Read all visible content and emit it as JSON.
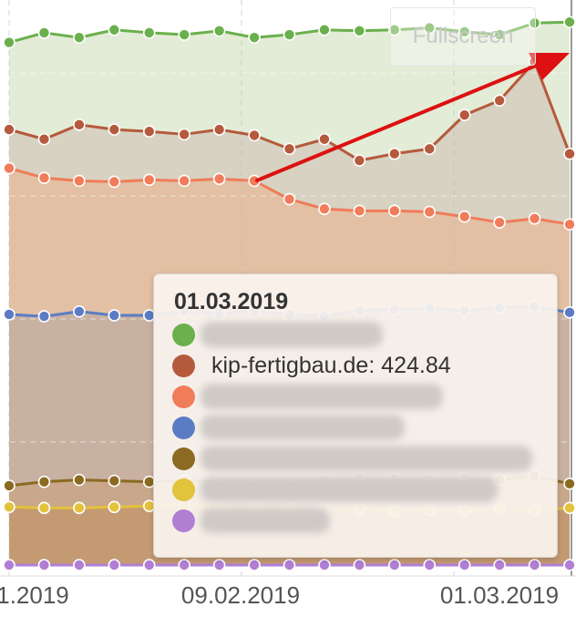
{
  "fullscreen_label": "Fullscreen",
  "chart_data": {
    "type": "area",
    "x": [
      "1.2019",
      "",
      "",
      "",
      "",
      "",
      "",
      "09.02.2019",
      "",
      "",
      "",
      "",
      "",
      "",
      "",
      "01.03.2019",
      ""
    ],
    "xtick_labels": [
      "1.2019",
      "09.02.2019",
      "01.03.2019"
    ],
    "series": [
      {
        "name": "",
        "color": "#6ab04c",
        "fill": "#e3ecd6",
        "values": [
          540,
          550,
          545,
          553,
          550,
          548,
          552,
          545,
          548,
          553,
          552,
          553,
          555,
          551,
          548,
          560,
          561
        ]
      },
      {
        "name": "kip-fertigbau.de",
        "color": "#b55a3c",
        "fill": "#d7d2c2",
        "values": [
          450,
          440,
          455,
          450,
          448,
          445,
          450,
          444,
          430,
          440,
          418,
          425,
          430,
          465,
          480,
          520,
          424.84
        ]
      },
      {
        "name": "",
        "color": "#f07c5a",
        "fill": "#e3c0a3",
        "values": [
          410,
          400,
          397,
          396,
          398,
          397,
          399,
          397,
          378,
          368,
          366,
          366,
          365,
          360,
          354,
          358,
          352
        ]
      },
      {
        "name": "",
        "color": "#5b7cc4",
        "fill": "#c9b1a2",
        "values": [
          259,
          257,
          262,
          258,
          258,
          262,
          260,
          262,
          259,
          257,
          263,
          264,
          265,
          263,
          266,
          267,
          261
        ]
      },
      {
        "name": "",
        "color": "#8b6a22",
        "fill": "#c9a78a",
        "values": [
          82,
          86,
          88,
          87,
          86,
          87,
          86,
          87,
          86,
          88,
          90,
          89,
          88,
          89,
          88,
          92,
          84
        ]
      },
      {
        "name": "",
        "color": "#e3c23c",
        "fill": "#c49a72",
        "values": [
          60,
          59,
          59,
          60,
          61,
          62,
          60,
          60,
          59,
          58,
          58,
          56,
          57,
          56,
          58,
          57,
          59
        ]
      },
      {
        "name": "",
        "color": "#b07fd4",
        "fill": "#ffffff",
        "values": [
          0,
          0,
          0,
          0,
          0,
          0,
          0,
          0,
          0,
          0,
          0,
          0,
          0,
          0,
          0,
          0,
          0
        ]
      }
    ],
    "grid": true,
    "legend": "none"
  },
  "tooltip": {
    "date": "01.03.2019",
    "entries": [
      {
        "color": "#6ab04c",
        "text": "",
        "blurred": true
      },
      {
        "color": "#b55a3c",
        "text": "kip-fertigbau.de: 424.84",
        "blurred": false
      },
      {
        "color": "#f07c5a",
        "text": "",
        "blurred": true
      },
      {
        "color": "#5b7cc4",
        "text": "",
        "blurred": true
      },
      {
        "color": "#8b6a22",
        "text": "",
        "blurred": true
      },
      {
        "color": "#e3c23c",
        "text": "",
        "blurred": true
      },
      {
        "color": "#b07fd4",
        "text": "",
        "blurred": true
      }
    ]
  },
  "annotation_arrow_color": "#dd1111"
}
